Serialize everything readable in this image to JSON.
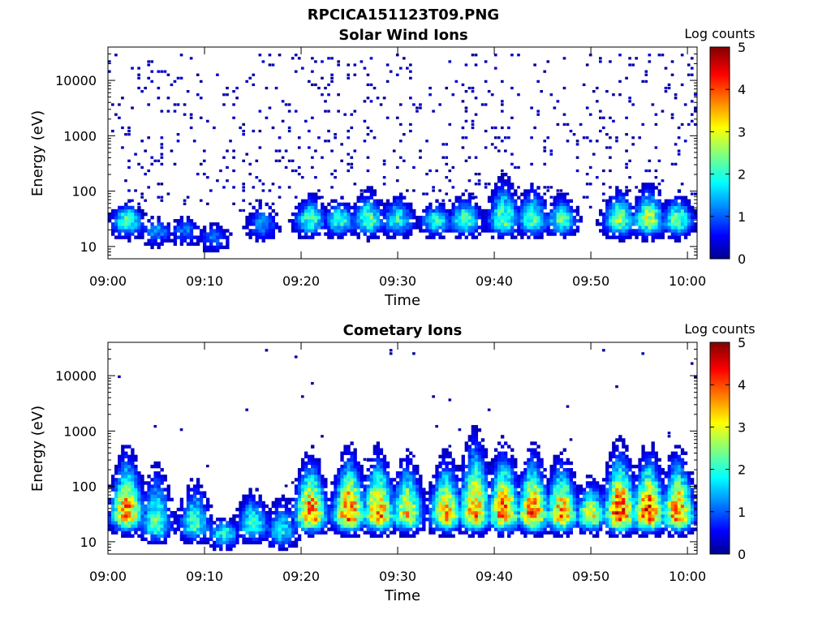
{
  "figure": {
    "title": "RPCICA151123T09.PNG"
  },
  "chart_data": [
    {
      "type": "heatmap",
      "title": "Solar Wind Ions",
      "xlabel": "Time",
      "ylabel": "Energy (eV)",
      "x_ticks": [
        "09:00",
        "09:10",
        "09:20",
        "09:30",
        "09:40",
        "09:50",
        "10:00"
      ],
      "x_range": [
        "09:00",
        "10:01"
      ],
      "y_scale": "log",
      "y_ticks": [
        "10",
        "100",
        "1000",
        "10000"
      ],
      "y_range": [
        6,
        40000
      ],
      "colorbar": {
        "label": "Log counts",
        "range": [
          0,
          5
        ],
        "ticks": [
          "0",
          "1",
          "2",
          "3",
          "4",
          "5"
        ],
        "colormap": "jet"
      },
      "bursts": [
        {
          "time": "09:02",
          "energy_peak_eV": 30,
          "max_log_counts": 2.3,
          "extent_eV": 70
        },
        {
          "time": "09:05",
          "energy_peak_eV": 20,
          "max_log_counts": 1.4,
          "extent_eV": 40
        },
        {
          "time": "09:08",
          "energy_peak_eV": 20,
          "max_log_counts": 1.2,
          "extent_eV": 40
        },
        {
          "time": "09:11",
          "energy_peak_eV": 15,
          "max_log_counts": 1.1,
          "extent_eV": 30
        },
        {
          "time": "09:16",
          "energy_peak_eV": 25,
          "max_log_counts": 1.3,
          "extent_eV": 80
        },
        {
          "time": "09:21",
          "energy_peak_eV": 30,
          "max_log_counts": 2.2,
          "extent_eV": 100
        },
        {
          "time": "09:24",
          "energy_peak_eV": 30,
          "max_log_counts": 2.1,
          "extent_eV": 80
        },
        {
          "time": "09:27",
          "energy_peak_eV": 30,
          "max_log_counts": 2.3,
          "extent_eV": 120
        },
        {
          "time": "09:30",
          "energy_peak_eV": 30,
          "max_log_counts": 2.0,
          "extent_eV": 100
        },
        {
          "time": "09:34",
          "energy_peak_eV": 30,
          "max_log_counts": 2.0,
          "extent_eV": 70
        },
        {
          "time": "09:37",
          "energy_peak_eV": 30,
          "max_log_counts": 2.2,
          "extent_eV": 100
        },
        {
          "time": "09:41",
          "energy_peak_eV": 30,
          "max_log_counts": 2.4,
          "extent_eV": 200
        },
        {
          "time": "09:44",
          "energy_peak_eV": 30,
          "max_log_counts": 2.2,
          "extent_eV": 150
        },
        {
          "time": "09:47",
          "energy_peak_eV": 30,
          "max_log_counts": 2.2,
          "extent_eV": 100
        },
        {
          "time": "09:53",
          "energy_peak_eV": 30,
          "max_log_counts": 2.6,
          "extent_eV": 120
        },
        {
          "time": "09:56",
          "energy_peak_eV": 30,
          "max_log_counts": 2.8,
          "extent_eV": 150
        },
        {
          "time": "09:59",
          "energy_peak_eV": 30,
          "max_log_counts": 2.4,
          "extent_eV": 100
        }
      ],
      "background_noise": {
        "energy_min_eV": 40,
        "energy_max_eV": 30000,
        "max_log_counts": 0.4
      }
    },
    {
      "type": "heatmap",
      "title": "Cometary Ions",
      "xlabel": "Time",
      "ylabel": "Energy (eV)",
      "x_ticks": [
        "09:00",
        "09:10",
        "09:20",
        "09:30",
        "09:40",
        "09:50",
        "10:00"
      ],
      "x_range": [
        "09:00",
        "10:01"
      ],
      "y_scale": "log",
      "y_ticks": [
        "10",
        "100",
        "1000",
        "10000"
      ],
      "y_range": [
        6,
        40000
      ],
      "colorbar": {
        "label": "Log counts",
        "range": [
          0,
          5
        ],
        "ticks": [
          "0",
          "1",
          "2",
          "3",
          "4",
          "5"
        ],
        "colormap": "jet"
      },
      "bursts": [
        {
          "time": "09:02",
          "energy_peak_eV": 30,
          "max_log_counts": 3.7,
          "extent_eV": 500
        },
        {
          "time": "09:05",
          "energy_peak_eV": 20,
          "max_log_counts": 2.3,
          "extent_eV": 300
        },
        {
          "time": "09:09",
          "energy_peak_eV": 20,
          "max_log_counts": 2.2,
          "extent_eV": 150
        },
        {
          "time": "09:12",
          "energy_peak_eV": 15,
          "max_log_counts": 2.0,
          "extent_eV": 30
        },
        {
          "time": "09:15",
          "energy_peak_eV": 20,
          "max_log_counts": 2.1,
          "extent_eV": 100
        },
        {
          "time": "09:18",
          "energy_peak_eV": 15,
          "max_log_counts": 1.8,
          "extent_eV": 80
        },
        {
          "time": "09:21",
          "energy_peak_eV": 30,
          "max_log_counts": 3.9,
          "extent_eV": 400
        },
        {
          "time": "09:25",
          "energy_peak_eV": 30,
          "max_log_counts": 4.0,
          "extent_eV": 500
        },
        {
          "time": "09:28",
          "energy_peak_eV": 30,
          "max_log_counts": 3.8,
          "extent_eV": 500
        },
        {
          "time": "09:31",
          "energy_peak_eV": 30,
          "max_log_counts": 3.2,
          "extent_eV": 400
        },
        {
          "time": "09:35",
          "energy_peak_eV": 30,
          "max_log_counts": 3.5,
          "extent_eV": 400
        },
        {
          "time": "09:38",
          "energy_peak_eV": 30,
          "max_log_counts": 3.6,
          "extent_eV": 1000
        },
        {
          "time": "09:41",
          "energy_peak_eV": 30,
          "max_log_counts": 3.8,
          "extent_eV": 600
        },
        {
          "time": "09:44",
          "energy_peak_eV": 30,
          "max_log_counts": 3.9,
          "extent_eV": 500
        },
        {
          "time": "09:47",
          "energy_peak_eV": 30,
          "max_log_counts": 3.6,
          "extent_eV": 400
        },
        {
          "time": "09:50",
          "energy_peak_eV": 30,
          "max_log_counts": 3.0,
          "extent_eV": 150
        },
        {
          "time": "09:53",
          "energy_peak_eV": 30,
          "max_log_counts": 4.2,
          "extent_eV": 600
        },
        {
          "time": "09:56",
          "energy_peak_eV": 30,
          "max_log_counts": 4.2,
          "extent_eV": 500
        },
        {
          "time": "09:59",
          "energy_peak_eV": 30,
          "max_log_counts": 3.8,
          "extent_eV": 500
        }
      ],
      "background_noise": {
        "energy_min_eV": 40,
        "energy_max_eV": 30000,
        "max_log_counts": 0.3
      }
    }
  ]
}
